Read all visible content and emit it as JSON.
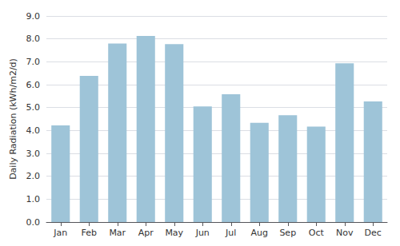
{
  "chart_data": {
    "type": "bar",
    "categories": [
      "Jan",
      "Feb",
      "Mar",
      "Apr",
      "May",
      "Jun",
      "Jul",
      "Aug",
      "Sep",
      "Oct",
      "Nov",
      "Dec"
    ],
    "values": [
      4.22,
      6.38,
      7.8,
      8.13,
      7.77,
      5.05,
      5.58,
      4.33,
      4.67,
      4.17,
      6.93,
      5.27
    ],
    "color": "#9ec4d8",
    "ylabel": "Daily Radiation (kWh/m2/d)",
    "ylim": [
      0.0,
      9.0
    ],
    "yticks": [
      {
        "value": 0.0,
        "label": "0.0"
      },
      {
        "value": 1.0,
        "label": "1.0"
      },
      {
        "value": 2.0,
        "label": "2.0"
      },
      {
        "value": 3.0,
        "label": "3.0"
      },
      {
        "value": 4.0,
        "label": "4.0"
      },
      {
        "value": 5.0,
        "label": "5.0"
      },
      {
        "value": 6.0,
        "label": "6.0"
      },
      {
        "value": 7.0,
        "label": "7.0"
      },
      {
        "value": 8.0,
        "label": "8.0"
      },
      {
        "value": 9.0,
        "label": "9.0"
      }
    ],
    "grid": true
  }
}
